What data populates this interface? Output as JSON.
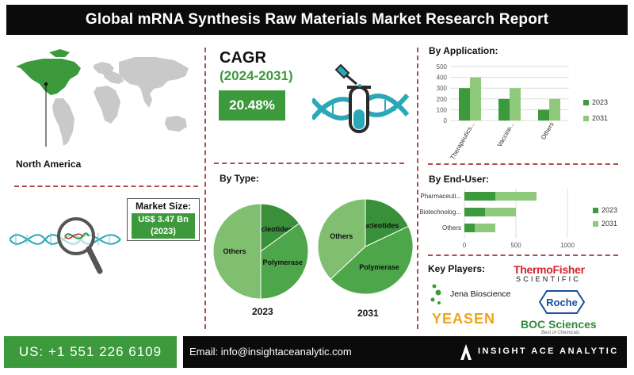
{
  "title": "Global mRNA Synthesis Raw Materials Market Research Report",
  "region": {
    "label": "North America"
  },
  "market_size": {
    "title": "Market Size:",
    "value": "US$ 3.47 Bn",
    "year": "(2023)"
  },
  "cagr": {
    "title": "CAGR",
    "period": "(2024-2031)",
    "value": "20.48%"
  },
  "by_type": {
    "label": "By Type:",
    "charts": [
      {
        "year": "2023",
        "slices": [
          {
            "name": "Others",
            "value": 50
          },
          {
            "name": "Nucleotides",
            "value": 15
          },
          {
            "name": "Polymerase",
            "value": 35
          }
        ]
      },
      {
        "year": "2031",
        "slices": [
          {
            "name": "Others",
            "value": 37
          },
          {
            "name": "Nucleotides",
            "value": 18
          },
          {
            "name": "Polymerase",
            "value": 45
          }
        ]
      }
    ]
  },
  "by_application": {
    "label": "By Application:",
    "yticks": [
      "0",
      "100",
      "200",
      "300",
      "400",
      "500"
    ],
    "legend": [
      "2023",
      "2031"
    ]
  },
  "by_end_user": {
    "label": "By End-User:",
    "xticks": [
      "0",
      "500",
      "1000"
    ],
    "legend": [
      "2023",
      "2031"
    ]
  },
  "chart_data": [
    {
      "type": "bar",
      "title": "By Application:",
      "categories": [
        "Therapeutics...",
        "Vaccine...",
        "Others"
      ],
      "series": [
        {
          "name": "2023",
          "values": [
            300,
            200,
            100
          ]
        },
        {
          "name": "2031",
          "values": [
            400,
            300,
            200
          ]
        }
      ],
      "ylim": [
        0,
        500
      ],
      "grid": true,
      "legend": "right"
    },
    {
      "type": "bar",
      "orientation": "horizontal",
      "stacked": true,
      "title": "By End-User:",
      "categories": [
        "Pharmaceuti...",
        "Biotechnolog...",
        "Others"
      ],
      "series": [
        {
          "name": "2023",
          "values": [
            300,
            200,
            100
          ]
        },
        {
          "name": "2031",
          "values": [
            400,
            300,
            200
          ]
        }
      ],
      "xlim": [
        0,
        1000
      ],
      "grid": true,
      "legend": "right"
    },
    {
      "type": "pie",
      "title": "2023",
      "labels": [
        "Others",
        "Nucleotides",
        "Polymerase"
      ],
      "values": [
        50,
        15,
        35
      ]
    },
    {
      "type": "pie",
      "title": "2031",
      "labels": [
        "Others",
        "Nucleotides",
        "Polymerase"
      ],
      "values": [
        37,
        18,
        45
      ]
    }
  ],
  "key_players": {
    "label": "Key Players:",
    "thermo": "ThermoFisher",
    "thermo_sub": "SCIENTIFIC",
    "jena": "Jena Bioscience",
    "roche": "Roche",
    "yeasen": "YEASEN",
    "boc": "BOC Sciences",
    "boc_sub": "Best of Chemicals"
  },
  "footer": {
    "phone": "US: +1 551 226 6109",
    "email": "Email: info@insightaceanalytic.com",
    "brand": "INSIGHT ACE ANALYTIC"
  },
  "colors": {
    "dark_green": "#3c9a3c",
    "light_green": "#8fca7c",
    "pie_dark": "#3a8f3a",
    "pie_mid": "#4ea64a",
    "pie_light": "#7fbf6f",
    "separator": "#b34a4a",
    "teal": "#2aa8b8"
  }
}
